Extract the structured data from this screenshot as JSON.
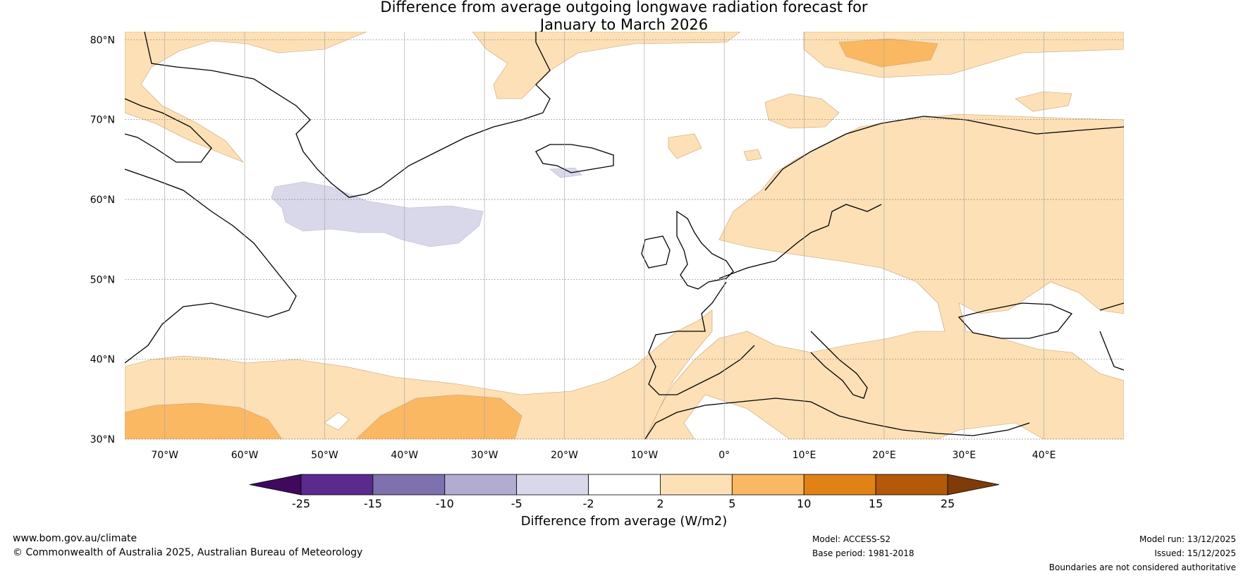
{
  "header": {
    "title_line1": "Difference from average outgoing longwave radiation forecast for",
    "title_line2": "January to March 2026"
  },
  "map": {
    "lat_labels": [
      "80°N",
      "70°N",
      "60°N",
      "50°N",
      "40°N",
      "30°N"
    ],
    "lon_labels": [
      "70°W",
      "60°W",
      "50°W",
      "40°W",
      "30°W",
      "20°W",
      "10°W",
      "0°",
      "10°E",
      "20°E",
      "30°E",
      "40°E"
    ],
    "lat_values": [
      80,
      70,
      60,
      50,
      40,
      30
    ],
    "lon_values": [
      -70,
      -60,
      -50,
      -40,
      -30,
      -20,
      -10,
      0,
      10,
      20,
      30,
      40
    ],
    "lon_range": [
      -75,
      50
    ],
    "lat_range": [
      30,
      81
    ]
  },
  "colorbar": {
    "tick_labels": [
      "-25",
      "-15",
      "-10",
      "-5",
      "-2",
      "2",
      "5",
      "10",
      "15",
      "25"
    ],
    "colors": [
      "#3f0a5e",
      "#5a2a8f",
      "#7e71ad",
      "#b2abd2",
      "#d8d8ea",
      "#ffffff",
      "#fde0b6",
      "#fbb862",
      "#e08215",
      "#b35907",
      "#7f3b08"
    ],
    "label": "Difference from average (W/m2)"
  },
  "footer": {
    "website": "www.bom.gov.au/climate",
    "copyright": "© Commonwealth of Australia 2025, Australian Bureau of Meteorology",
    "model": "Model: ACCESS-S2",
    "base_period": "Base period: 1981-2018",
    "model_run": "Model run: 13/12/2025",
    "issued": "Issued: 15/12/2025",
    "disclaimer": "Boundaries are not considered authoritative"
  }
}
